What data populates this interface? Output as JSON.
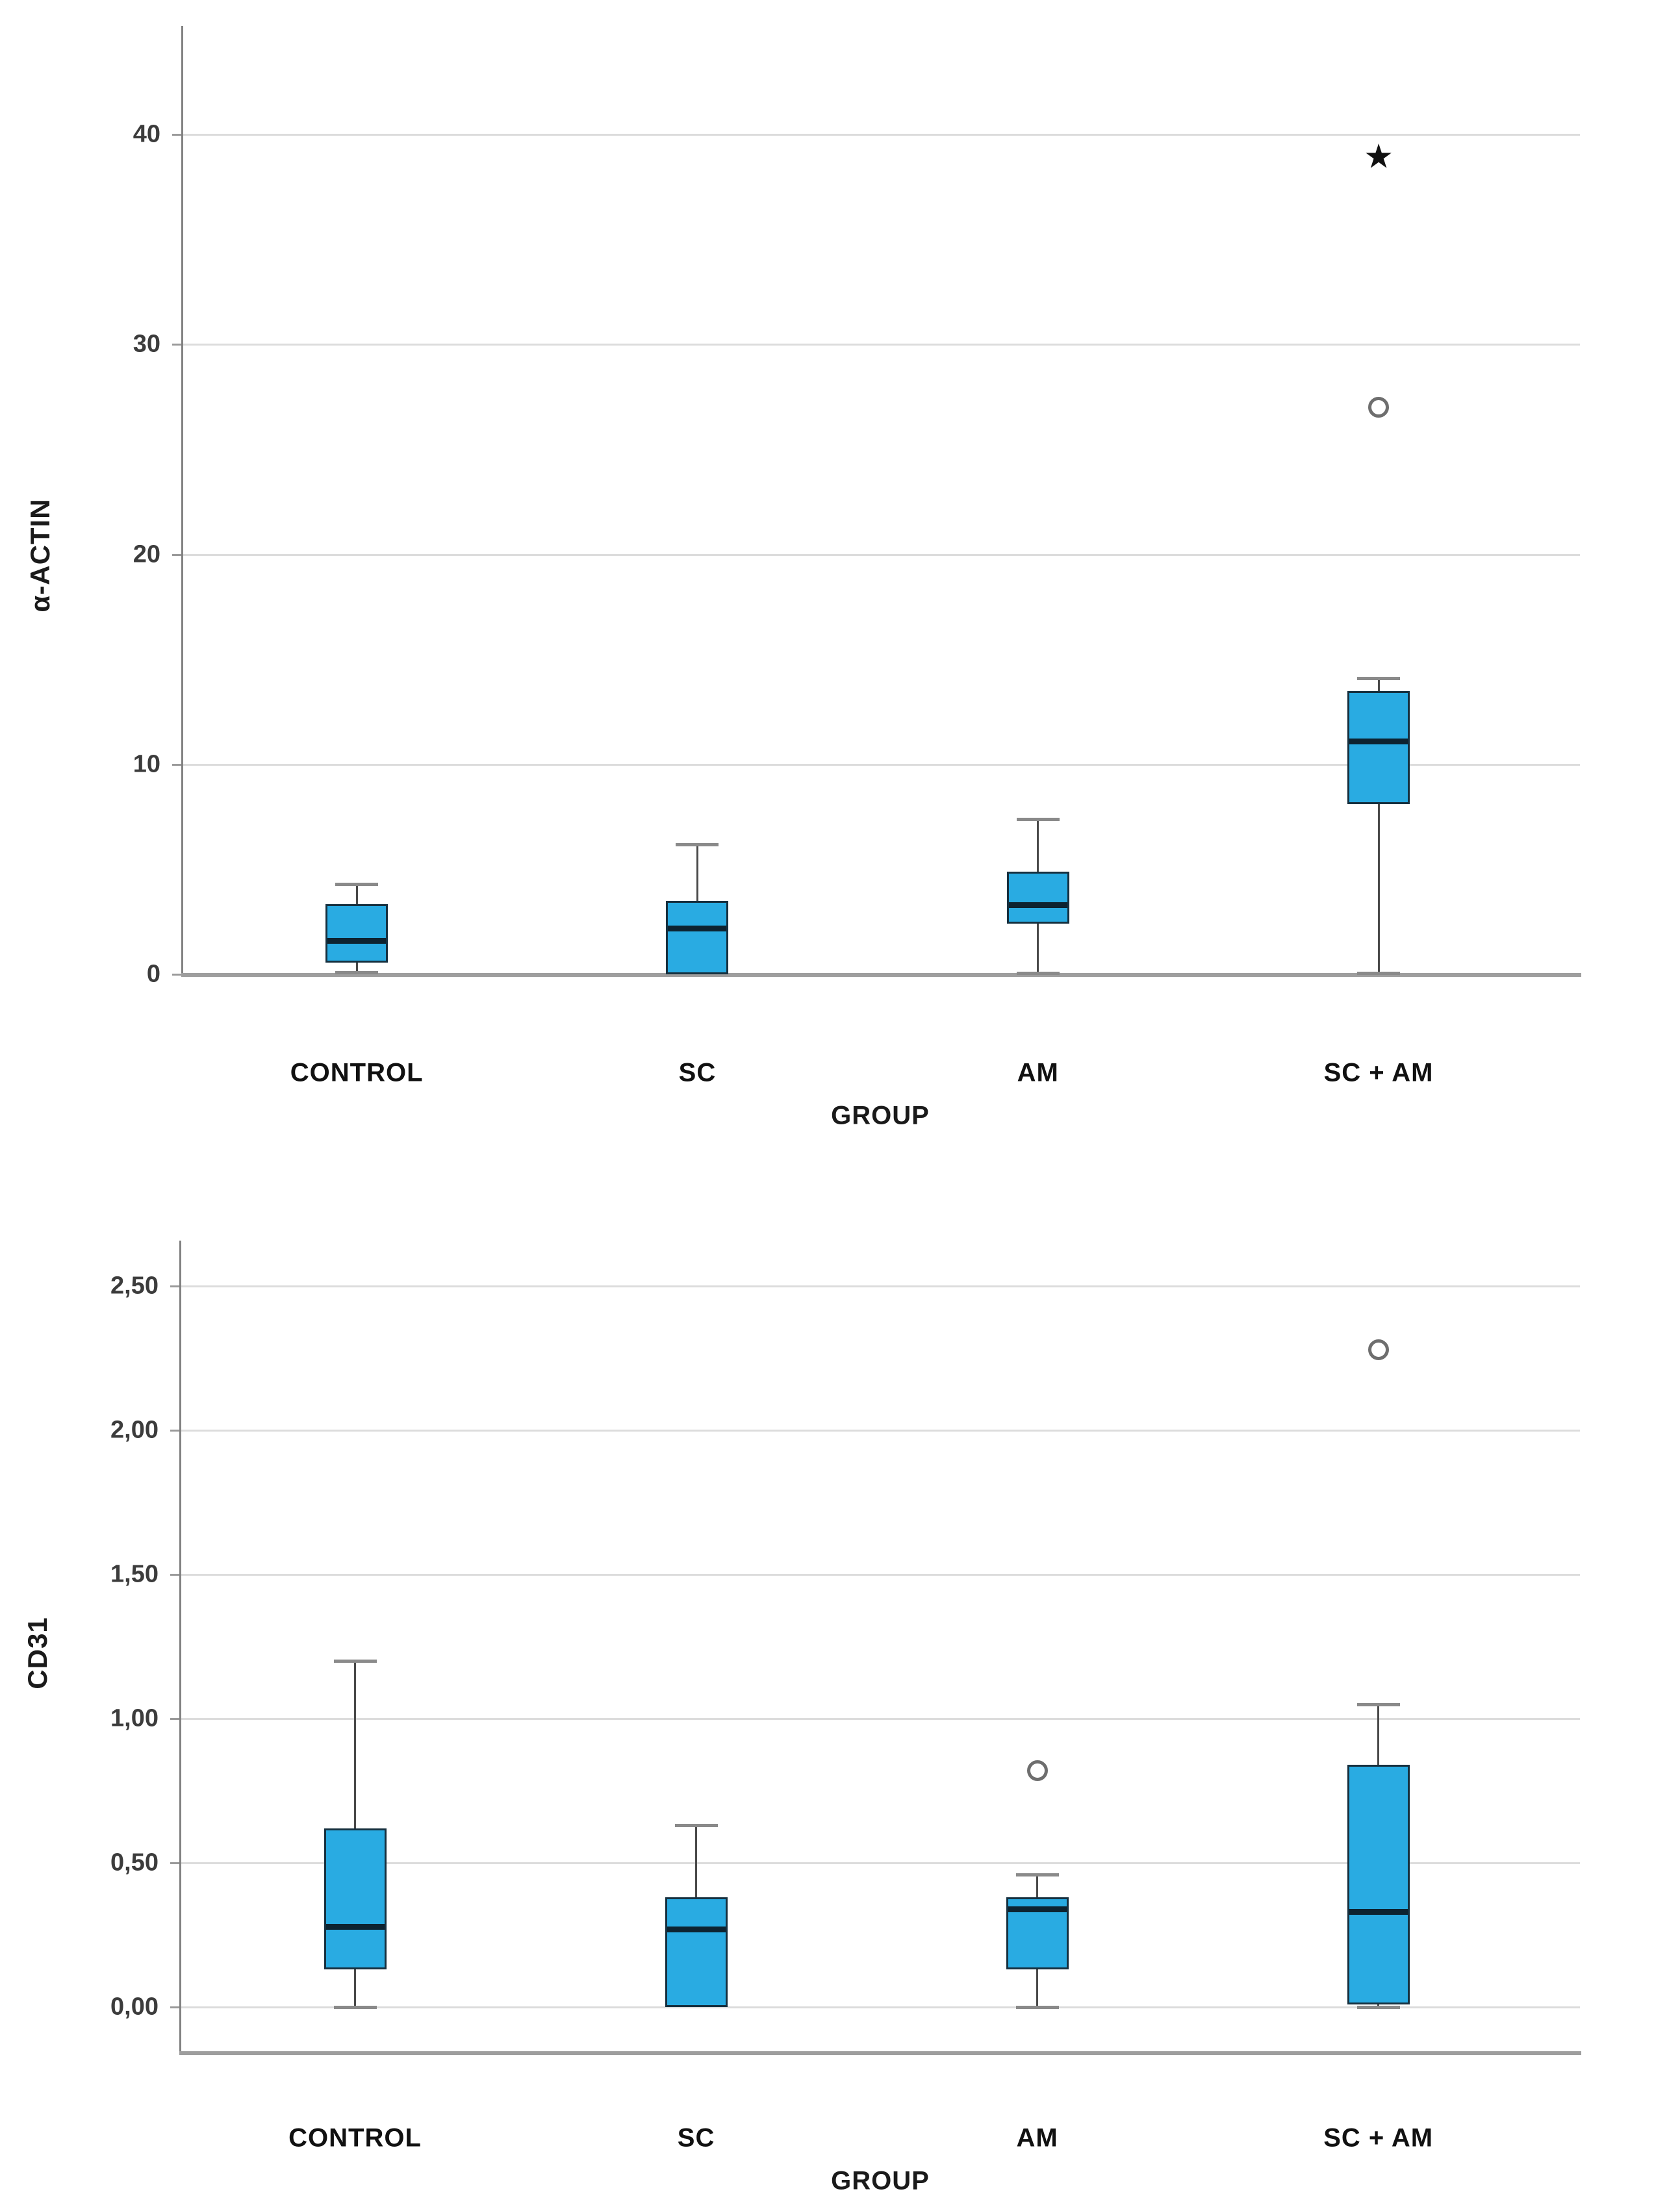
{
  "figure": {
    "background": "#ffffff",
    "description_colors": {
      "box_fill": "#29ABE2",
      "box_border": "#16303F",
      "median_line": "#0D2330",
      "whisker": "#4A4A4A",
      "whisker_cap": "#8A8A8A",
      "gridline": "#DCDCDC",
      "axis_line": "#828282",
      "baseline": "#9E9E9E",
      "text": "#1A1A1A",
      "outlier_marker": "#6E6E6E",
      "extreme_marker": "#111111"
    },
    "outlier_marker_glyphs": {
      "circle": "○",
      "star": "★"
    }
  },
  "chart_data": [
    {
      "type": "boxplot",
      "title": "",
      "ylabel": "α-ACTIN",
      "xlabel": "GROUP",
      "categories": [
        "CONTROL",
        "SC",
        "AM",
        "SC + AM"
      ],
      "ylim": [
        0,
        45
      ],
      "grid": true,
      "legend": "none",
      "yticks": [
        {
          "label": "0",
          "value": 0
        },
        {
          "label": "10",
          "value": 10
        },
        {
          "label": "20",
          "value": 20
        },
        {
          "label": "30",
          "value": 30
        },
        {
          "label": "40",
          "value": 40
        }
      ],
      "series": [
        {
          "category": "CONTROL",
          "whisker_low": 0.1,
          "q1": 0.55,
          "median": 1.6,
          "q3": 3.35,
          "whisker_high": 4.3,
          "outliers": []
        },
        {
          "category": "SC",
          "whisker_low": 0.0,
          "q1": 0.0,
          "median": 2.2,
          "q3": 3.5,
          "whisker_high": 6.2,
          "outliers": []
        },
        {
          "category": "AM",
          "whisker_low": 0.05,
          "q1": 2.4,
          "median": 3.3,
          "q3": 4.9,
          "whisker_high": 7.4,
          "outliers": []
        },
        {
          "category": "SC + AM",
          "whisker_low": 0.05,
          "q1": 8.1,
          "median": 11.1,
          "q3": 13.5,
          "whisker_high": 14.1,
          "outliers": [
            {
              "value": 27.0,
              "marker": "circle"
            },
            {
              "value": 38.9,
              "marker": "star"
            }
          ]
        }
      ]
    },
    {
      "type": "boxplot",
      "title": "",
      "ylabel": "CD31",
      "xlabel": "GROUP",
      "categories": [
        "CONTROL",
        "SC",
        "AM",
        "SC + AM"
      ],
      "ylim": [
        -0.16,
        2.66
      ],
      "grid": true,
      "legend": "none",
      "yticks": [
        {
          "label": "0,00",
          "value": 0.0
        },
        {
          "label": "0,50",
          "value": 0.5
        },
        {
          "label": "1,00",
          "value": 1.0
        },
        {
          "label": "1,50",
          "value": 1.5
        },
        {
          "label": "2,00",
          "value": 2.0
        },
        {
          "label": "2,50",
          "value": 2.5
        }
      ],
      "series": [
        {
          "category": "CONTROL",
          "whisker_low": 0.0,
          "q1": 0.13,
          "median": 0.28,
          "q3": 0.62,
          "whisker_high": 1.2,
          "outliers": []
        },
        {
          "category": "SC",
          "whisker_low": 0.0,
          "q1": 0.0,
          "median": 0.27,
          "q3": 0.38,
          "whisker_high": 0.63,
          "outliers": []
        },
        {
          "category": "AM",
          "whisker_low": 0.0,
          "q1": 0.13,
          "median": 0.34,
          "q3": 0.38,
          "whisker_high": 0.46,
          "outliers": [
            {
              "value": 0.82,
              "marker": "circle"
            }
          ]
        },
        {
          "category": "SC + AM",
          "whisker_low": 0.0,
          "q1": 0.01,
          "median": 0.33,
          "q3": 0.84,
          "whisker_high": 1.05,
          "outliers": [
            {
              "value": 2.28,
              "marker": "circle"
            }
          ]
        }
      ]
    }
  ]
}
